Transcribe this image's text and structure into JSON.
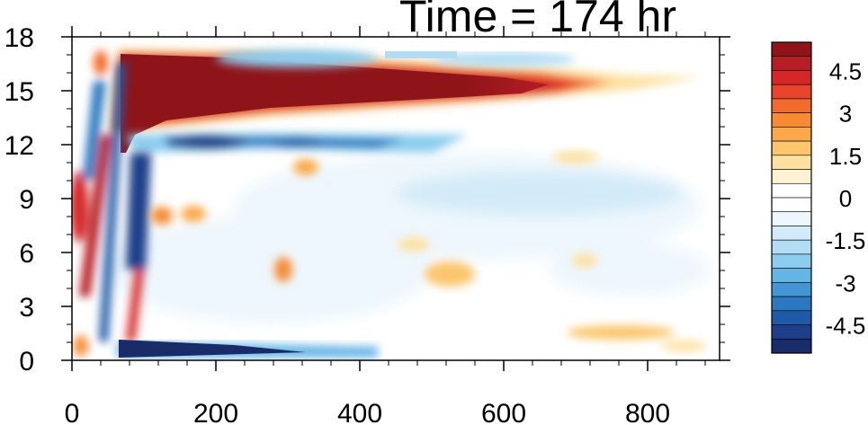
{
  "title": "Time = 174 hr",
  "chart_data": {
    "type": "heatmap",
    "title": "Time = 174 hr",
    "xlabel": "",
    "ylabel": "",
    "xlim": [
      0,
      900
    ],
    "ylim": [
      0,
      18
    ],
    "x_ticks": [
      "0",
      "200",
      "400",
      "600",
      "800"
    ],
    "y_ticks": [
      "0",
      "3",
      "6",
      "9",
      "12",
      "15",
      "18"
    ],
    "colorbar": {
      "labels": [
        "4.5",
        "3",
        "1.5",
        "0",
        "-1.5",
        "-3",
        "-4.5"
      ],
      "levels": [
        -5.5,
        -5,
        -4.5,
        -4,
        -3.5,
        -3,
        -2.5,
        -2,
        -1.5,
        -1,
        -0.5,
        0,
        0.5,
        1,
        1.5,
        2,
        2.5,
        3,
        3.5,
        4,
        4.5,
        5,
        5.5
      ],
      "colors_top_to_bottom": [
        "#8e1419",
        "#b51e24",
        "#d62728",
        "#e8432c",
        "#f26b2c",
        "#f68b34",
        "#f9a94a",
        "#fbc66d",
        "#fde1a0",
        "#fff3d2",
        "#ffffff",
        "#ffffff",
        "#eef7fd",
        "#d3ebf8",
        "#b2ddf4",
        "#8ccdef",
        "#64b4e6",
        "#4395d3",
        "#2c78c0",
        "#1f5aa8",
        "#1d3f8a",
        "#1a2b6a"
      ]
    },
    "features": [
      {
        "kind": "positive",
        "desc": "dominant warm jet",
        "x": [
          60,
          660
        ],
        "y": [
          13,
          17
        ],
        "value": 5.5
      },
      {
        "kind": "negative",
        "desc": "cool band beneath jet",
        "x": [
          110,
          520
        ],
        "y": [
          11.5,
          13
        ],
        "value": -3.5
      },
      {
        "kind": "negative",
        "desc": "strong cool band near surface",
        "x": [
          60,
          420
        ],
        "y": [
          0,
          1
        ],
        "value": -5.5
      },
      {
        "kind": "positive",
        "desc": "warm tilted filament",
        "x": [
          20,
          120
        ],
        "y": [
          0,
          17
        ],
        "value": 5
      },
      {
        "kind": "negative",
        "desc": "cool tilted filament",
        "x": [
          70,
          140
        ],
        "y": [
          1,
          12
        ],
        "value": -5
      }
    ]
  }
}
